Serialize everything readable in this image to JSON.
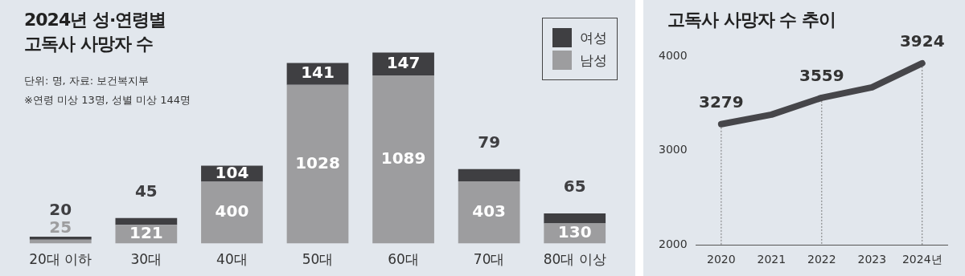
{
  "chart_data": [
    {
      "type": "bar",
      "title": "2024년 성·연령별 고독사 사망자 수",
      "annotations": [
        "단위: 명, 자료: 보건복지부",
        "※연령 미상 13명, 성별 미상 144명"
      ],
      "categories": [
        "20대 이하",
        "30대",
        "40대",
        "50대",
        "60대",
        "70대",
        "80대 이상"
      ],
      "stacked": true,
      "data_labels": true,
      "legend": "top right",
      "tick_labels": "x",
      "grid": false,
      "series": [
        {
          "name": "남성",
          "color": "#9d9d9f",
          "values": [
            25,
            121,
            400,
            1028,
            1089,
            403,
            130
          ]
        },
        {
          "name": "여성",
          "color": "#3f3f42",
          "values": [
            20,
            45,
            104,
            141,
            147,
            79,
            65
          ]
        }
      ]
    },
    {
      "type": "line",
      "title": "고독사 사망자 수 추이",
      "categories": [
        "2020",
        "2021",
        "2022",
        "2023",
        "2024년"
      ],
      "ylim": [
        2000,
        4000
      ],
      "yticks": [
        2000,
        3000,
        4000
      ],
      "grid": false,
      "ref_lines": [
        {
          "axis": "x",
          "value": "2020",
          "color": "#777777",
          "line_style": "dotted"
        },
        {
          "axis": "x",
          "value": "2022",
          "color": "#777777",
          "line_style": "dotted"
        },
        {
          "axis": "x",
          "value": "2024년",
          "color": "#777777",
          "line_style": "dotted"
        }
      ],
      "legend": false,
      "marker": "none",
      "series": [
        {
          "color": "#46464a",
          "values": [
            3279,
            3380,
            3559,
            3670,
            3924
          ],
          "value_labels": [
            "3279",
            null,
            "3559",
            null,
            "3924"
          ]
        }
      ]
    }
  ]
}
